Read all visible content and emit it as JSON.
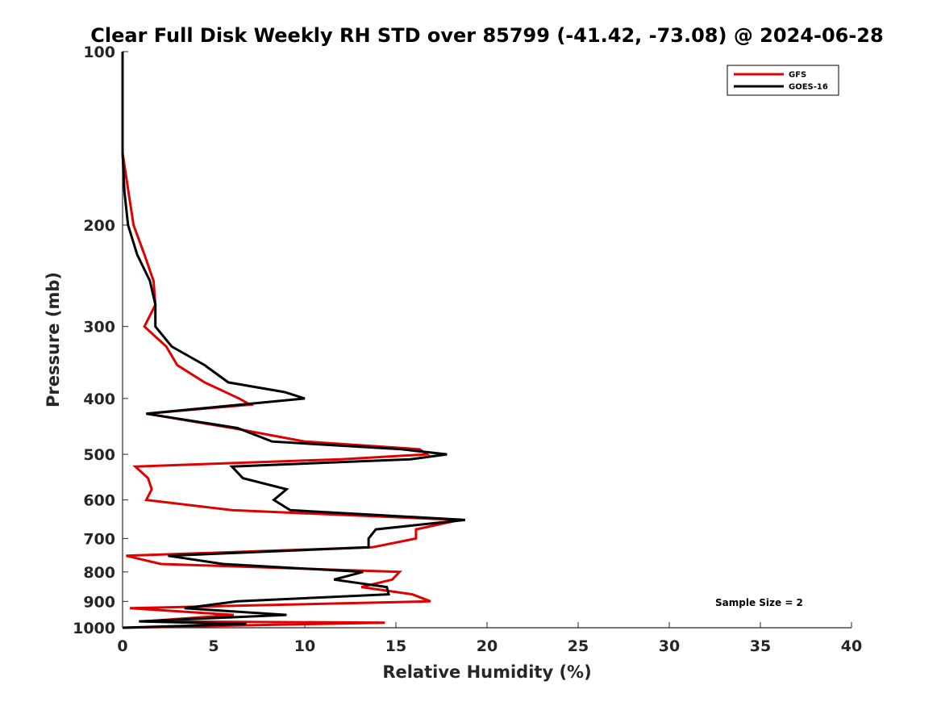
{
  "chart_data": {
    "type": "line",
    "title": "Clear Full Disk Weekly RH STD over 85799 (-41.42, -73.08) @ 2024-06-28",
    "xlabel": "Relative Humidity (%)",
    "ylabel": "Pressure (mb)",
    "xlim": [
      0,
      40
    ],
    "ylim": [
      100,
      1000
    ],
    "yscale": "log",
    "y_reversed": true,
    "xticks": [
      0,
      5,
      10,
      15,
      20,
      25,
      30,
      35,
      40
    ],
    "xtick_labels": [
      "0",
      "5",
      "10",
      "15",
      "20",
      "25",
      "30",
      "35",
      "40"
    ],
    "yticks": [
      100,
      200,
      300,
      400,
      500,
      600,
      700,
      800,
      900,
      1000
    ],
    "ytick_labels": [
      "100",
      "200",
      "300",
      "400",
      "500",
      "600",
      "700",
      "800",
      "900",
      "1000"
    ],
    "grid": false,
    "legend_position": "top-right",
    "annotation": "Sample Size = 2",
    "series": [
      {
        "name": "GFS",
        "color": "#e00000",
        "points": [
          [
            0,
            100
          ],
          [
            0,
            150
          ],
          [
            0.6,
            200
          ],
          [
            1.2,
            225
          ],
          [
            1.7,
            250
          ],
          [
            1.8,
            275
          ],
          [
            1.2,
            300
          ],
          [
            2.4,
            325
          ],
          [
            3.0,
            350
          ],
          [
            4.5,
            375
          ],
          [
            6.4,
            400
          ],
          [
            7.0,
            410
          ],
          [
            1.3,
            425
          ],
          [
            6.0,
            450
          ],
          [
            10.0,
            475
          ],
          [
            16.3,
            490
          ],
          [
            16.7,
            500
          ],
          [
            12.0,
            510
          ],
          [
            0.7,
            525
          ],
          [
            1.4,
            550
          ],
          [
            1.6,
            575
          ],
          [
            1.3,
            600
          ],
          [
            6.0,
            625
          ],
          [
            18.5,
            650
          ],
          [
            16.1,
            675
          ],
          [
            16.1,
            700
          ],
          [
            13.7,
            725
          ],
          [
            0.2,
            750
          ],
          [
            2.1,
            775
          ],
          [
            15.2,
            800
          ],
          [
            14.8,
            825
          ],
          [
            13.1,
            850
          ],
          [
            15.9,
            875
          ],
          [
            16.9,
            900
          ],
          [
            0.4,
            925
          ],
          [
            6.1,
            950
          ],
          [
            1.2,
            975
          ],
          [
            14.4,
            980
          ],
          [
            7.0,
            990
          ],
          [
            0,
            1000
          ]
        ]
      },
      {
        "name": "GOES-16",
        "color": "#000000",
        "points": [
          [
            0,
            100
          ],
          [
            0,
            150
          ],
          [
            0.1,
            175
          ],
          [
            0.3,
            200
          ],
          [
            0.8,
            225
          ],
          [
            1.5,
            250
          ],
          [
            1.8,
            275
          ],
          [
            1.8,
            300
          ],
          [
            2.7,
            325
          ],
          [
            4.5,
            350
          ],
          [
            5.8,
            375
          ],
          [
            8.9,
            390
          ],
          [
            10.0,
            400
          ],
          [
            1.3,
            425
          ],
          [
            6.3,
            450
          ],
          [
            8.2,
            475
          ],
          [
            15.3,
            490
          ],
          [
            17.8,
            500
          ],
          [
            15.8,
            510
          ],
          [
            6.0,
            525
          ],
          [
            6.6,
            550
          ],
          [
            9.0,
            575
          ],
          [
            8.3,
            600
          ],
          [
            9.2,
            625
          ],
          [
            18.8,
            650
          ],
          [
            13.9,
            675
          ],
          [
            13.5,
            700
          ],
          [
            13.5,
            725
          ],
          [
            2.5,
            750
          ],
          [
            5.5,
            775
          ],
          [
            13.2,
            800
          ],
          [
            11.6,
            825
          ],
          [
            14.5,
            850
          ],
          [
            14.6,
            875
          ],
          [
            6.3,
            900
          ],
          [
            3.4,
            925
          ],
          [
            9.0,
            950
          ],
          [
            0.9,
            975
          ],
          [
            6.8,
            985
          ],
          [
            0,
            1000
          ]
        ]
      }
    ]
  }
}
